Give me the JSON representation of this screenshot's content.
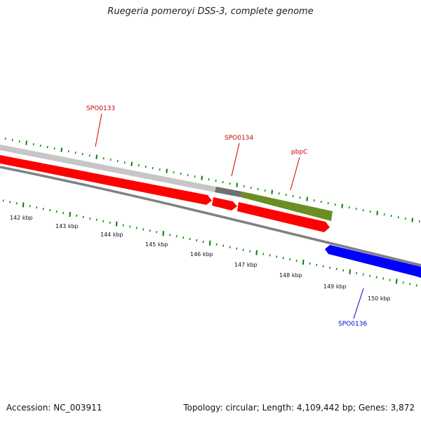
{
  "title": "Ruegeria pomeroyi DSS-3, complete genome",
  "footer": {
    "accession": "Accession: NC_003911",
    "summary": "Topology: circular; Length: 4,109,442 bp; Genes: 3,872"
  },
  "colors": {
    "forward_gene": "#ff0000",
    "reverse_gene": "#0000ff",
    "feature_green": "#6b8e23",
    "backbone": "#808080",
    "ticks": "#008000",
    "forward_label": "#cc0000",
    "reverse_label": "#0000cc"
  },
  "scale": {
    "labels": [
      "142 kbp",
      "143 kbp",
      "144 kbp",
      "145 kbp",
      "146 kbp",
      "147 kbp",
      "148 kbp",
      "149 kbp",
      "150 kbp"
    ]
  },
  "genes": [
    {
      "label": "SPO0133",
      "strand": "forward"
    },
    {
      "label": "SPO0134",
      "strand": "forward"
    },
    {
      "label": "pbpC",
      "strand": "forward"
    },
    {
      "label": "SPO0136",
      "strand": "reverse"
    }
  ]
}
